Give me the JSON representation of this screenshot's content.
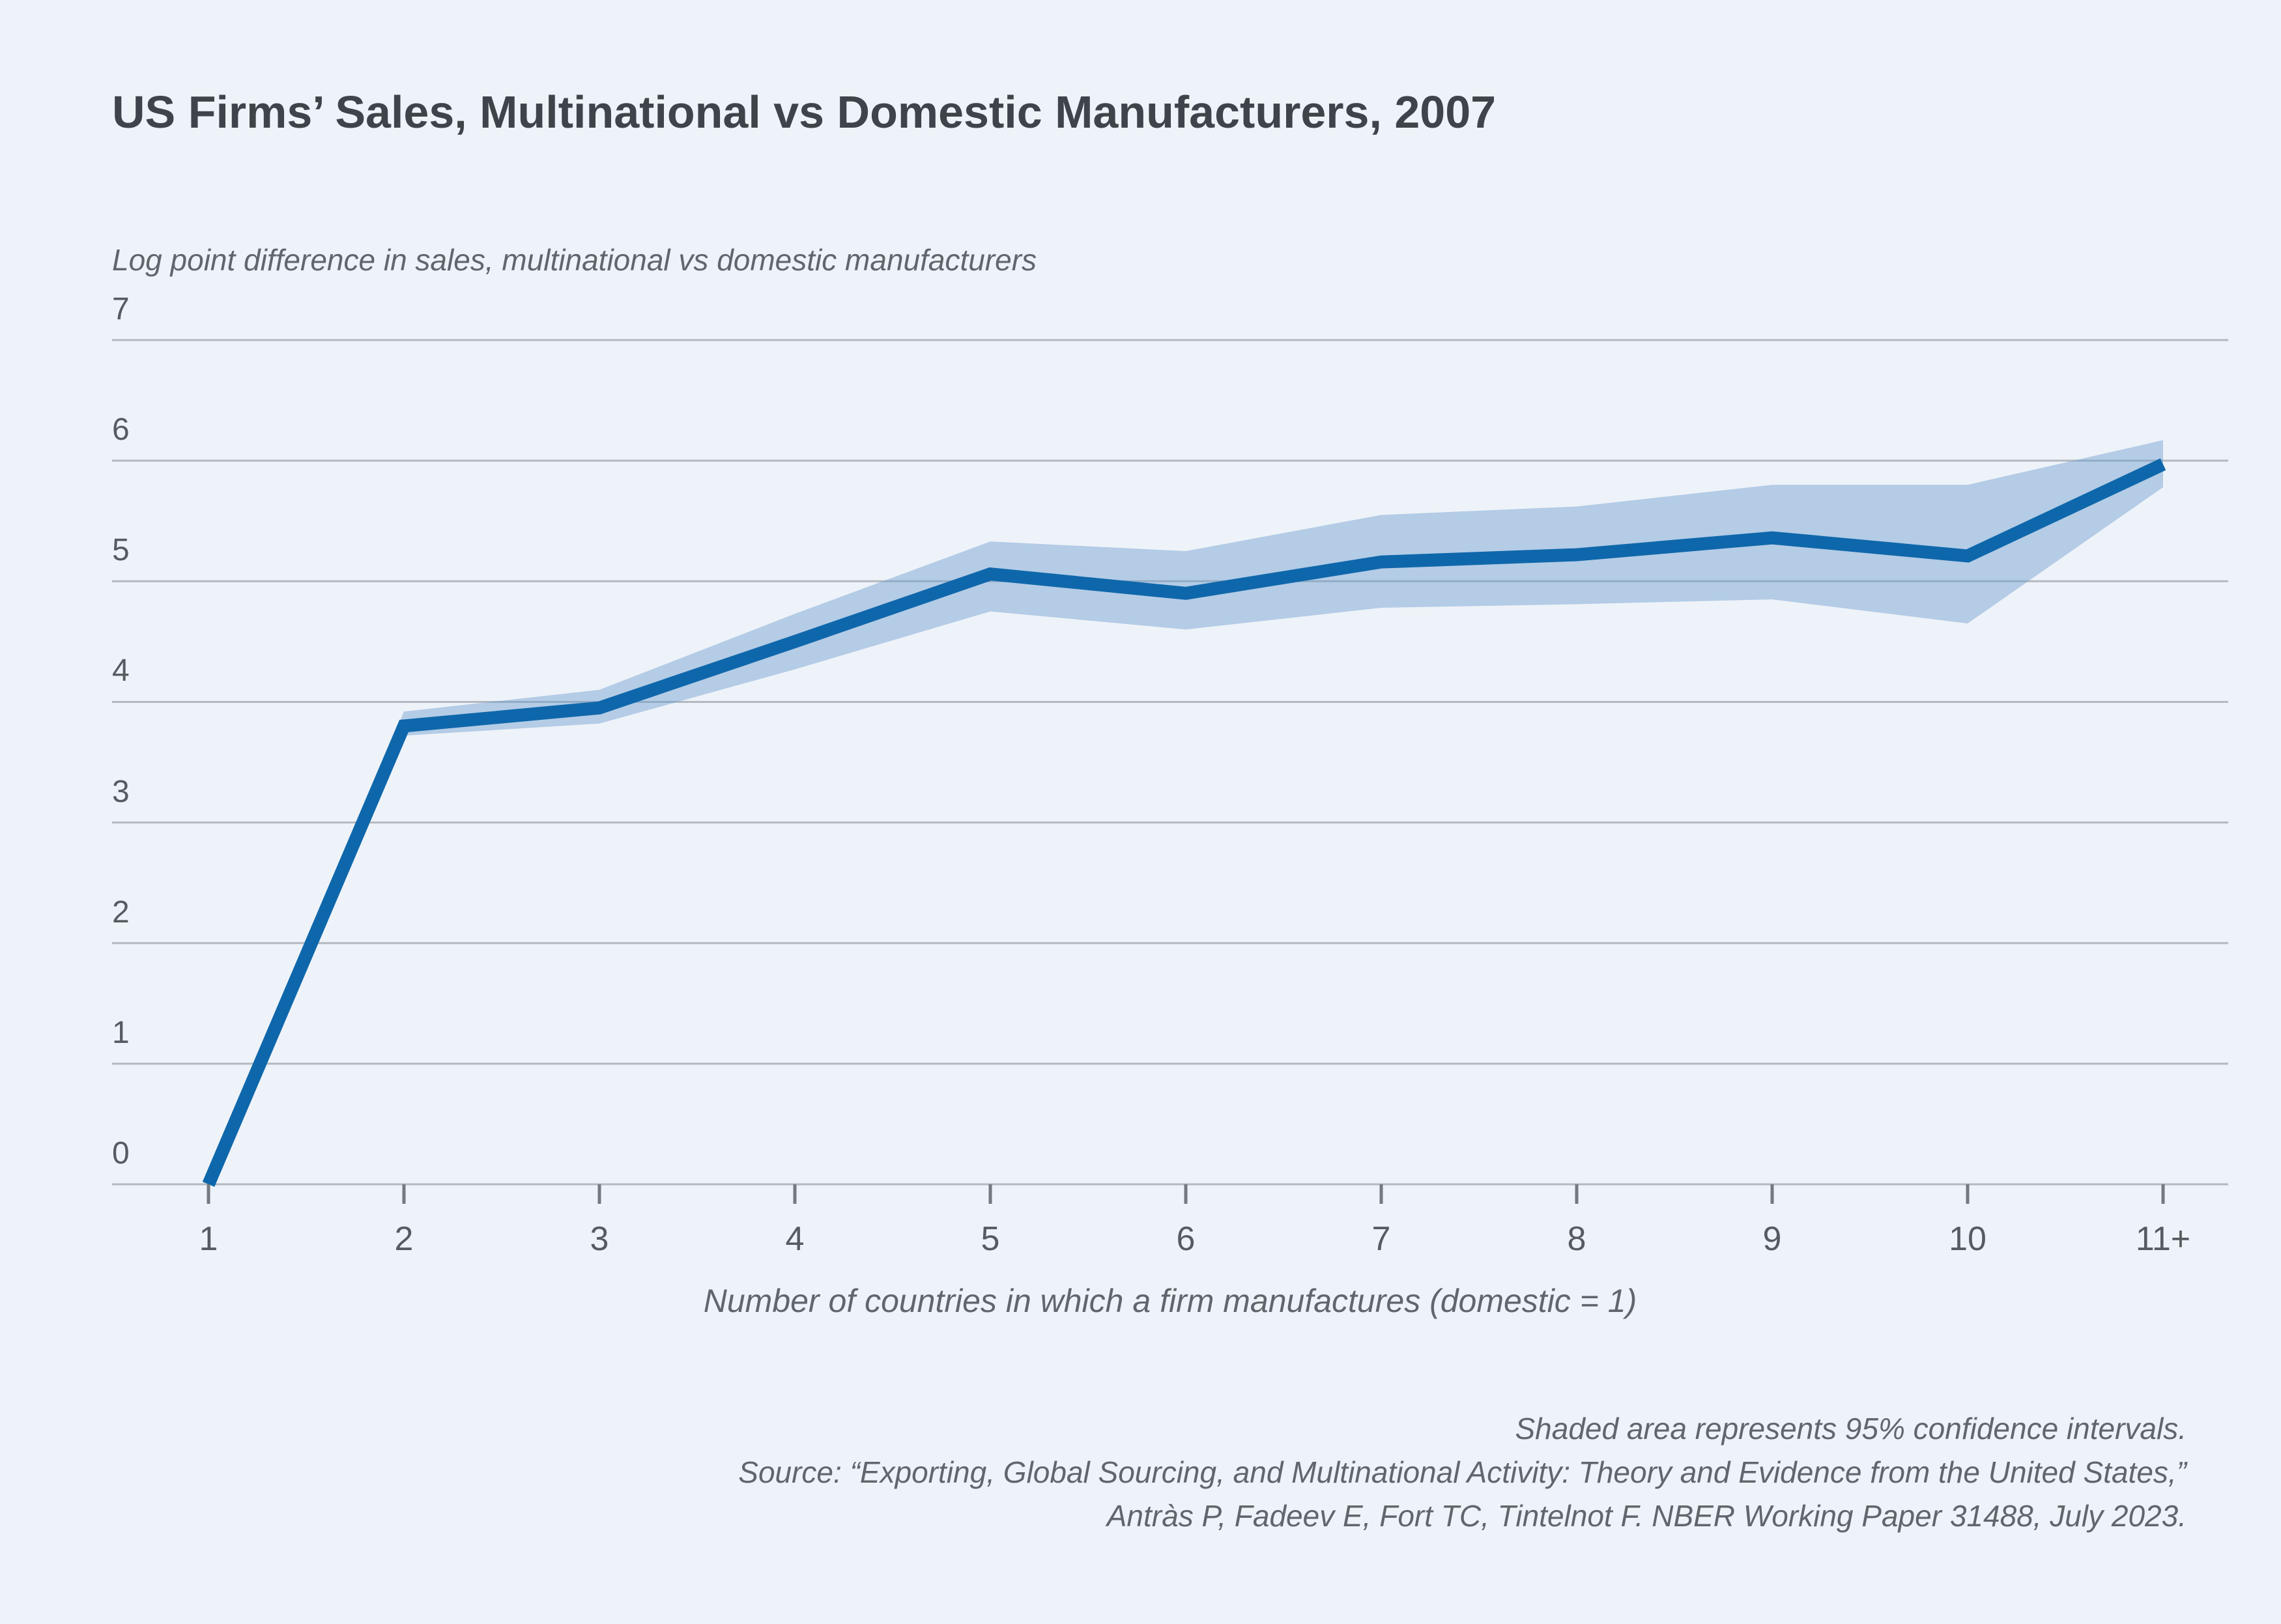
{
  "chart": {
    "title": "US Firms’ Sales, Multinational vs Domestic Manufacturers, 2007",
    "y_axis_title": "Log point difference in sales, multinational vs domestic manufacturers",
    "x_axis_title": "Number of countries in which a firm manufactures (domestic = 1)"
  },
  "footnotes": {
    "note": "Shaded area represents 95% confidence intervals.",
    "source_line1": "Source: “Exporting, Global Sourcing, and Multinational Activity: Theory and Evidence from the United States,”",
    "source_line2": "Antràs P, Fadeev E, Fort TC, Tintelnot F. NBER Working Paper 31488, July 2023."
  },
  "chart_data": {
    "type": "line",
    "title": "US Firms’ Sales, Multinational vs Domestic Manufacturers, 2007",
    "xlabel": "Number of countries in which a firm manufactures (domestic = 1)",
    "ylabel": "Log point difference in sales, multinational vs domestic manufacturers",
    "categories": [
      "1",
      "2",
      "3",
      "4",
      "5",
      "6",
      "7",
      "8",
      "9",
      "10",
      "11+"
    ],
    "series": [
      {
        "name": "Log point difference in sales, multinational vs domestic manufacturers",
        "values": [
          0,
          3.8,
          3.95,
          4.5,
          5.06,
          4.9,
          5.16,
          5.22,
          5.36,
          5.21,
          5.97
        ]
      }
    ],
    "ci_upper": [
      0,
      3.92,
      4.1,
      4.73,
      5.33,
      5.25,
      5.55,
      5.62,
      5.8,
      5.8,
      6.17
    ],
    "ci_lower": [
      0,
      3.72,
      3.82,
      4.27,
      4.75,
      4.6,
      4.78,
      4.81,
      4.85,
      4.65,
      5.78
    ],
    "y_ticks": [
      0,
      1,
      2,
      3,
      4,
      5,
      6,
      7
    ],
    "ylim": [
      0,
      7
    ],
    "grid": true,
    "legend": "none",
    "annotation": "Shaded area represents 95% confidence intervals.",
    "colors": {
      "line": "#0f67ab",
      "band": "#6d9ecf",
      "band_opacity": 0.45,
      "gridline": "#b3b9c0",
      "tick": "#74797f",
      "background": "#eef3f9",
      "title_text": "#3e444a",
      "muted_text": "#60666c",
      "tick_label_text": "#555b61"
    }
  }
}
